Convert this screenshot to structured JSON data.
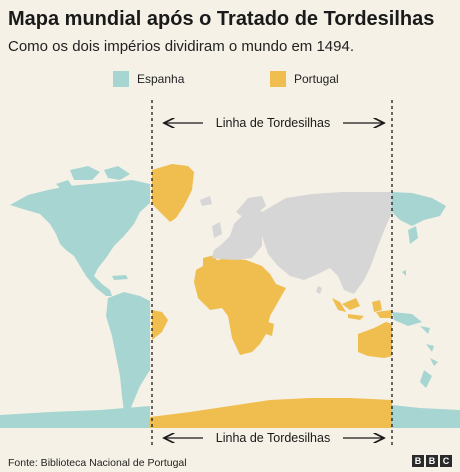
{
  "header": {
    "title": "Mapa mundial após o Tratado de Tordesilhas",
    "subtitle": "Como os dois impérios dividiram o mundo em 1494."
  },
  "legend": [
    {
      "label": "Espanha",
      "color": "#a7d6d2"
    },
    {
      "label": "Portugal",
      "color": "#f0bd4f"
    }
  ],
  "map": {
    "line_label_top": "Linha de Tordesilhas",
    "line_label_bottom": "Linha de Tordesilhas",
    "neutral_color": "#d6d6d6"
  },
  "footer": {
    "source": "Fonte: Biblioteca Nacional de Portugal",
    "logo_letters": [
      "B",
      "B",
      "C"
    ]
  }
}
